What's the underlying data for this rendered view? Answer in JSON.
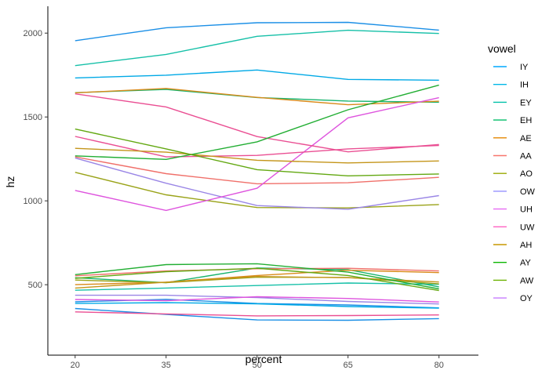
{
  "chart_data": {
    "type": "line",
    "xlabel": "percent",
    "ylabel": "hz",
    "legend_title": "vowel",
    "legend_position": "right",
    "grid": false,
    "xlim": [
      15.5,
      86.5
    ],
    "ylim": [
      80,
      2160
    ],
    "x": [
      20,
      35,
      50,
      65,
      80
    ],
    "x_ticks": [
      20,
      35,
      50,
      65,
      80
    ],
    "y_ticks": [
      500,
      1000,
      1500,
      2000
    ],
    "legend": [
      {
        "name": "IY",
        "color": "#00A9FF"
      },
      {
        "name": "IH",
        "color": "#00B8E7"
      },
      {
        "name": "EY",
        "color": "#00C1AA"
      },
      {
        "name": "EH",
        "color": "#00BE67"
      },
      {
        "name": "AE",
        "color": "#E58700"
      },
      {
        "name": "AA",
        "color": "#F8766D"
      },
      {
        "name": "AO",
        "color": "#99A800"
      },
      {
        "name": "OW",
        "color": "#9590FF"
      },
      {
        "name": "UH",
        "color": "#E76BF3"
      },
      {
        "name": "UW",
        "color": "#FF61C3"
      },
      {
        "name": "AH",
        "color": "#C99800"
      },
      {
        "name": "AY",
        "color": "#0CB702"
      },
      {
        "name": "AW",
        "color": "#6BB100"
      },
      {
        "name": "OY",
        "color": "#C77CFF"
      }
    ],
    "series": [
      {
        "color": "#1B8FE6",
        "values": [
          1955,
          2032,
          2062,
          2064,
          2018
        ]
      },
      {
        "color": "#1B8FE6",
        "values": [
          398,
          413,
          388,
          379,
          362
        ]
      },
      {
        "color": "#1B8FE6",
        "values": [
          358,
          323,
          290,
          288,
          298
        ]
      },
      {
        "color": "#00A9E6",
        "values": [
          1733,
          1749,
          1780,
          1724,
          1719
        ]
      },
      {
        "color": "#00A9E6",
        "values": [
          388,
          393,
          386,
          370,
          360
        ]
      },
      {
        "color": "#16C0A8",
        "values": [
          1806,
          1873,
          1981,
          2017,
          1998
        ]
      },
      {
        "color": "#16C0A8",
        "values": [
          467,
          480,
          495,
          510,
          502
        ]
      },
      {
        "color": "#19B46E",
        "values": [
          1645,
          1664,
          1616,
          1595,
          1588
        ]
      },
      {
        "color": "#19B46E",
        "values": [
          542,
          512,
          600,
          590,
          487
        ]
      },
      {
        "color": "#D98A1A",
        "values": [
          1644,
          1670,
          1617,
          1573,
          1594
        ]
      },
      {
        "color": "#D98A1A",
        "values": [
          500,
          515,
          555,
          586,
          572
        ]
      },
      {
        "color": "#F0706A",
        "values": [
          1262,
          1162,
          1102,
          1108,
          1140
        ]
      },
      {
        "color": "#F0706A",
        "values": [
          553,
          582,
          595,
          598,
          582
        ]
      },
      {
        "color": "#9AA319",
        "values": [
          1170,
          1036,
          960,
          958,
          978
        ]
      },
      {
        "color": "#9AA319",
        "values": [
          528,
          512,
          545,
          543,
          505
        ]
      },
      {
        "color": "#9A86E6",
        "values": [
          1255,
          1105,
          972,
          950,
          1031
        ]
      },
      {
        "color": "#9A86E6",
        "values": [
          437,
          437,
          423,
          400,
          385
        ]
      },
      {
        "color": "#DE54DE",
        "values": [
          1062,
          943,
          1075,
          1495,
          1615
        ]
      },
      {
        "color": "#DE54DE",
        "values": [
          412,
          405,
          428,
          418,
          397
        ]
      },
      {
        "color": "#EA4F93",
        "values": [
          1638,
          1560,
          1383,
          1292,
          1336
        ]
      },
      {
        "color": "#EA4F93",
        "values": [
          1384,
          1262,
          1271,
          1310,
          1330
        ]
      },
      {
        "color": "#EA4F93",
        "values": [
          338,
          326,
          314,
          316,
          320
        ]
      },
      {
        "color": "#C4951A",
        "values": [
          1313,
          1290,
          1242,
          1226,
          1238
        ]
      },
      {
        "color": "#C4951A",
        "values": [
          480,
          515,
          549,
          542,
          516
        ]
      },
      {
        "color": "#22AE33",
        "values": [
          1268,
          1247,
          1352,
          1543,
          1690
        ]
      },
      {
        "color": "#22AE33",
        "values": [
          560,
          620,
          625,
          575,
          475
        ]
      },
      {
        "color": "#63A812",
        "values": [
          1428,
          1310,
          1186,
          1149,
          1160
        ]
      },
      {
        "color": "#63A812",
        "values": [
          538,
          578,
          598,
          555,
          465
        ]
      }
    ]
  }
}
